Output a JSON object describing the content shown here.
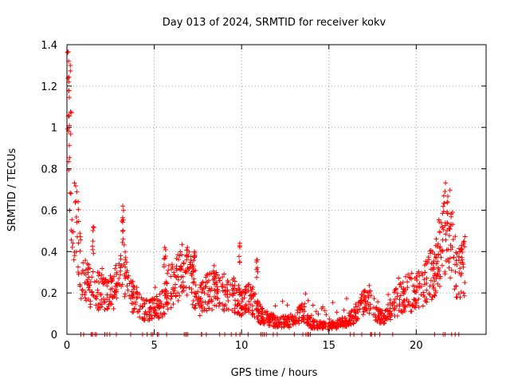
{
  "chart_data": {
    "type": "scatter",
    "title": "Day 013 of 2024, SRMTID for receiver kokv",
    "xlabel": "GPS time / hours",
    "ylabel": "SRMTID / TECUs",
    "xlim": [
      0,
      24
    ],
    "ylim": [
      0,
      1.4
    ],
    "xticks": [
      0,
      5,
      10,
      15,
      20
    ],
    "yticks": [
      0,
      0.2,
      0.4,
      0.6,
      0.8,
      1,
      1.2,
      1.4
    ],
    "xtick_labels": [
      "0",
      "5",
      "10",
      "15",
      "20"
    ],
    "ytick_labels": [
      "0",
      "0.2",
      "0.4",
      "0.6",
      "0.8",
      "1",
      "1.2",
      "1.4"
    ],
    "grid": true,
    "marker": "+",
    "series_color": "#ff0000",
    "trend": [
      {
        "x": 0.0,
        "y": 1.15
      },
      {
        "x": 0.1,
        "y": 1.3
      },
      {
        "x": 0.2,
        "y": 0.9
      },
      {
        "x": 0.3,
        "y": 0.7
      },
      {
        "x": 0.45,
        "y": 0.6
      },
      {
        "x": 0.6,
        "y": 0.5
      },
      {
        "x": 0.8,
        "y": 0.3
      },
      {
        "x": 1.0,
        "y": 0.25
      },
      {
        "x": 1.5,
        "y": 0.22
      },
      {
        "x": 2.0,
        "y": 0.2
      },
      {
        "x": 2.5,
        "y": 0.2
      },
      {
        "x": 3.0,
        "y": 0.26
      },
      {
        "x": 3.2,
        "y": 0.35
      },
      {
        "x": 3.5,
        "y": 0.2
      },
      {
        "x": 4.0,
        "y": 0.15
      },
      {
        "x": 4.5,
        "y": 0.12
      },
      {
        "x": 5.0,
        "y": 0.12
      },
      {
        "x": 5.5,
        "y": 0.15
      },
      {
        "x": 5.8,
        "y": 0.22
      },
      {
        "x": 6.2,
        "y": 0.25
      },
      {
        "x": 6.8,
        "y": 0.33
      },
      {
        "x": 7.2,
        "y": 0.25
      },
      {
        "x": 7.5,
        "y": 0.15
      },
      {
        "x": 8.0,
        "y": 0.2
      },
      {
        "x": 8.5,
        "y": 0.22
      },
      {
        "x": 9.0,
        "y": 0.18
      },
      {
        "x": 9.5,
        "y": 0.2
      },
      {
        "x": 10.0,
        "y": 0.15
      },
      {
        "x": 10.5,
        "y": 0.18
      },
      {
        "x": 11.0,
        "y": 0.1
      },
      {
        "x": 11.5,
        "y": 0.08
      },
      {
        "x": 12.0,
        "y": 0.06
      },
      {
        "x": 13.0,
        "y": 0.06
      },
      {
        "x": 13.5,
        "y": 0.12
      },
      {
        "x": 14.0,
        "y": 0.05
      },
      {
        "x": 15.0,
        "y": 0.04
      },
      {
        "x": 16.0,
        "y": 0.06
      },
      {
        "x": 16.5,
        "y": 0.1
      },
      {
        "x": 17.3,
        "y": 0.17
      },
      {
        "x": 17.8,
        "y": 0.1
      },
      {
        "x": 18.2,
        "y": 0.08
      },
      {
        "x": 18.8,
        "y": 0.15
      },
      {
        "x": 19.5,
        "y": 0.2
      },
      {
        "x": 20.0,
        "y": 0.2
      },
      {
        "x": 20.5,
        "y": 0.25
      },
      {
        "x": 21.0,
        "y": 0.3
      },
      {
        "x": 21.5,
        "y": 0.45
      },
      {
        "x": 21.8,
        "y": 0.55
      },
      {
        "x": 22.0,
        "y": 0.45
      },
      {
        "x": 22.3,
        "y": 0.3
      },
      {
        "x": 22.6,
        "y": 0.3
      },
      {
        "x": 22.8,
        "y": 0.35
      }
    ],
    "spikes": [
      {
        "x": 0.1,
        "y": 1.32
      },
      {
        "x": 1.5,
        "y": 0.52
      },
      {
        "x": 3.2,
        "y": 0.62
      },
      {
        "x": 5.6,
        "y": 0.42
      },
      {
        "x": 6.9,
        "y": 0.42
      },
      {
        "x": 7.3,
        "y": 0.4
      },
      {
        "x": 9.9,
        "y": 0.44
      },
      {
        "x": 10.9,
        "y": 0.36
      },
      {
        "x": 21.8,
        "y": 0.64
      },
      {
        "x": 22.6,
        "y": 0.43
      }
    ],
    "n_points": 1400
  }
}
